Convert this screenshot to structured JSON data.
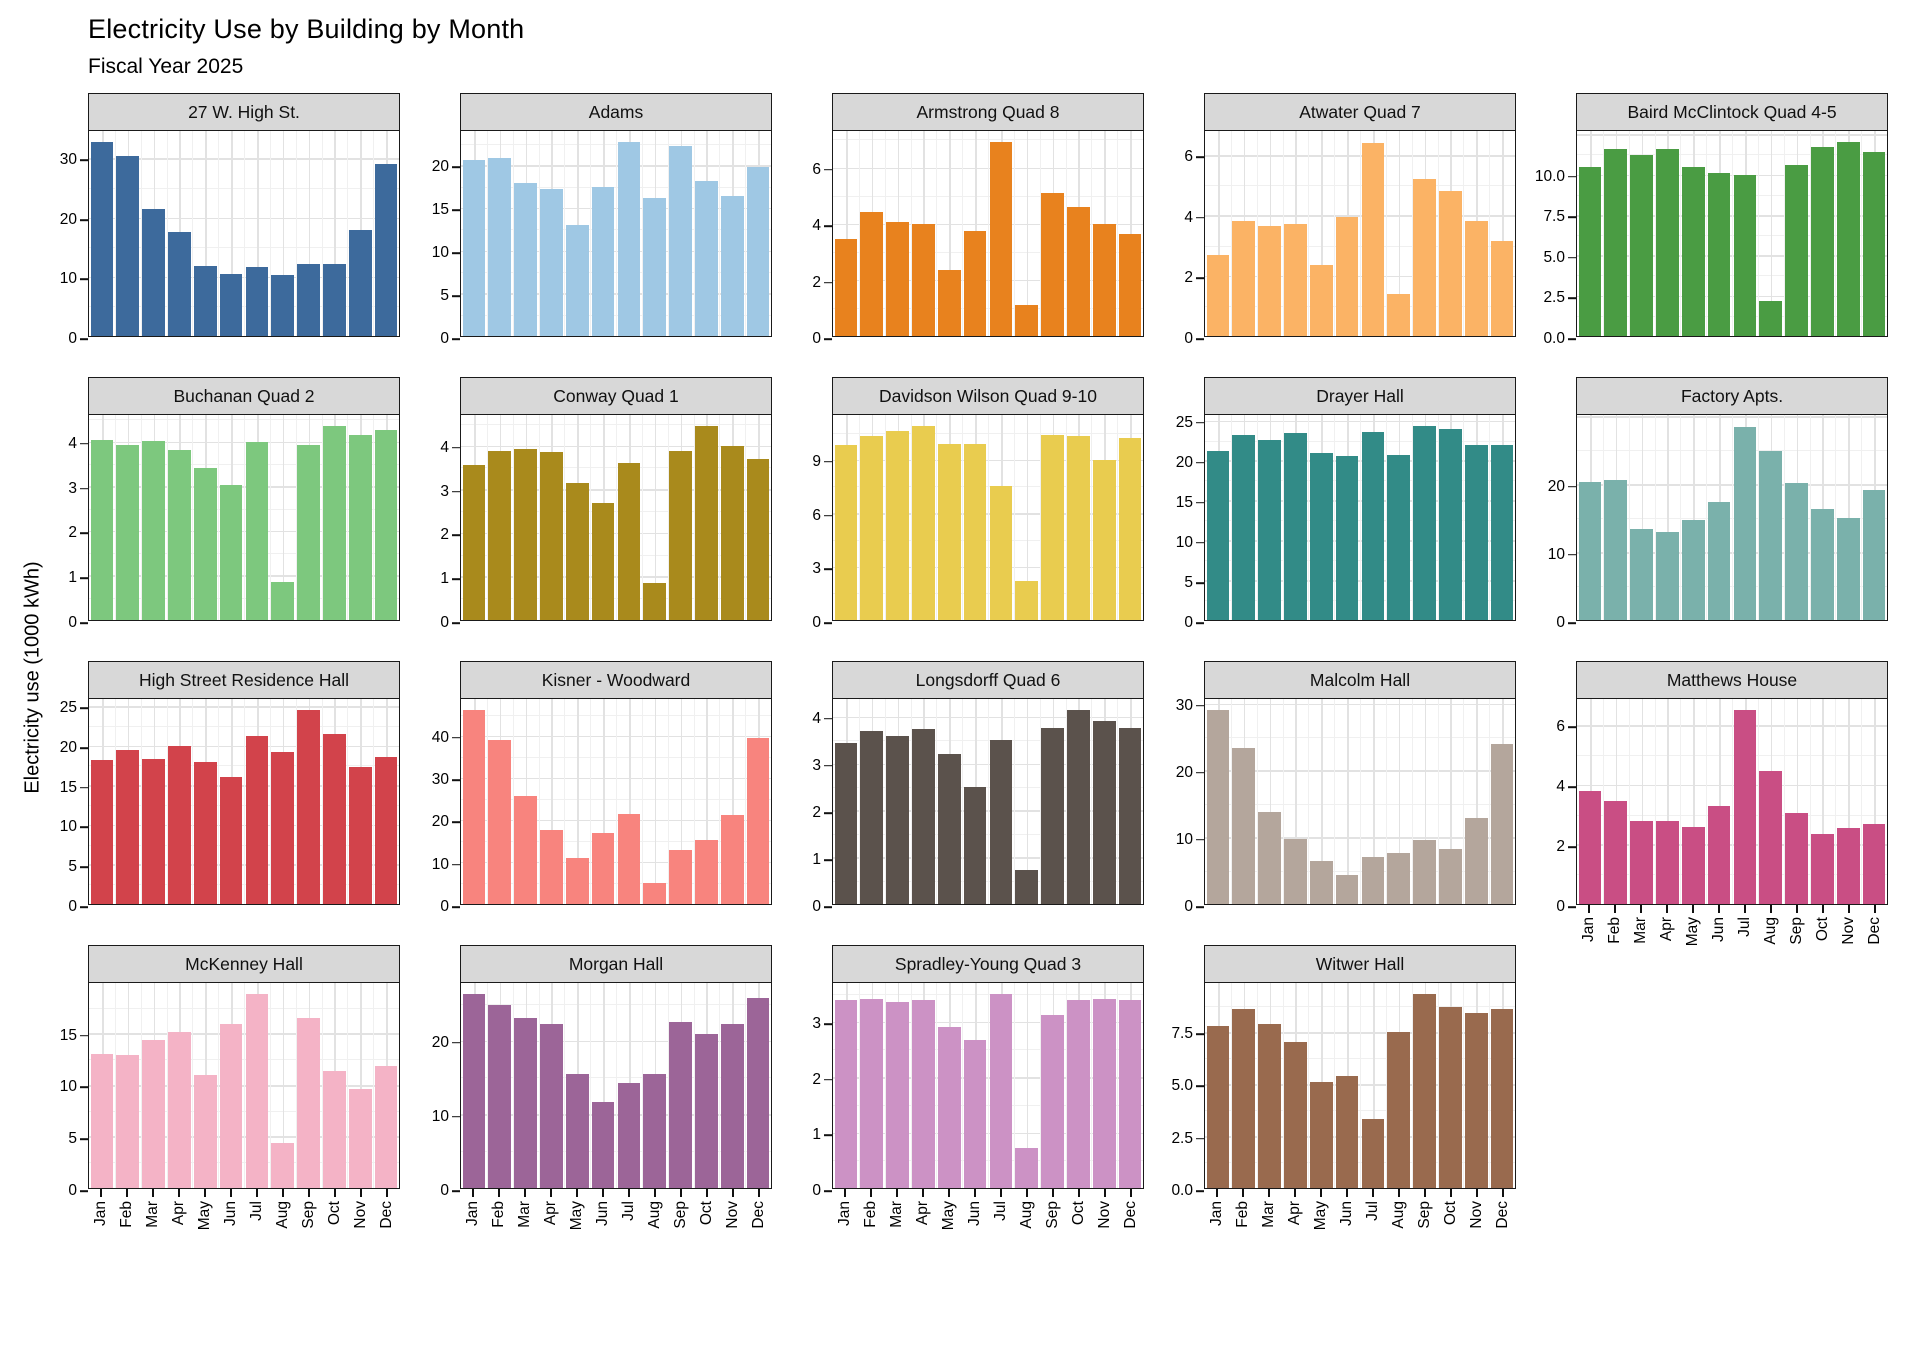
{
  "title": "Electricity Use by Building by Month",
  "subtitle": "Fiscal Year 2025",
  "chart_data": {
    "type": "bar",
    "faceted_by": "building",
    "ylabel": "Electricity use (1000 kWh)",
    "grid": true,
    "legend_position": "none",
    "categories": [
      "Jan",
      "Feb",
      "Mar",
      "Apr",
      "May",
      "Jun",
      "Jul",
      "Aug",
      "Sep",
      "Oct",
      "Nov",
      "Dec"
    ],
    "panels": [
      {
        "name": "27 W. High St.",
        "color": "#3D6A9C",
        "ylim": [
          0,
          34.6
        ],
        "tick_labels": [
          "0",
          "10",
          "20",
          "30"
        ],
        "values": [
          32.7,
          30.4,
          21.4,
          17.6,
          11.9,
          10.4,
          11.7,
          10.3,
          12.2,
          12.2,
          17.9,
          29.1
        ],
        "x_axis": false
      },
      {
        "name": "Adams",
        "color": "#9FC8E4",
        "ylim": [
          0,
          24.0
        ],
        "tick_labels": [
          "0",
          "5",
          "10",
          "15",
          "20"
        ],
        "values": [
          20.6,
          20.8,
          17.9,
          17.2,
          13.0,
          17.4,
          22.7,
          16.2,
          22.3,
          18.2,
          16.4,
          19.8
        ],
        "x_axis": false
      },
      {
        "name": "Armstrong Quad 8",
        "color": "#E8821E",
        "ylim": [
          0,
          7.3
        ],
        "tick_labels": [
          "0",
          "2",
          "4",
          "6"
        ],
        "values": [
          3.45,
          4.4,
          4.05,
          4.0,
          2.35,
          3.75,
          6.9,
          1.1,
          5.1,
          4.6,
          4.0,
          3.65
        ],
        "x_axis": false
      },
      {
        "name": "Atwater Quad 7",
        "color": "#FBB365",
        "ylim": [
          0,
          6.8
        ],
        "tick_labels": [
          "0",
          "2",
          "4",
          "6"
        ],
        "values": [
          2.7,
          3.8,
          3.65,
          3.7,
          2.35,
          3.95,
          6.4,
          1.4,
          5.2,
          4.8,
          3.8,
          3.15
        ],
        "x_axis": false
      },
      {
        "name": "Baird McClintock Quad 4-5",
        "color": "#4A9C43",
        "ylim": [
          0,
          12.7
        ],
        "tick_labels": [
          "0.0",
          "2.5",
          "5.0",
          "7.5",
          "10.0"
        ],
        "values": [
          10.5,
          11.6,
          11.2,
          11.6,
          10.5,
          10.1,
          10.0,
          2.2,
          10.6,
          11.7,
          12.0,
          11.4
        ],
        "x_axis": false
      },
      {
        "name": "Buchanan Quad 2",
        "color": "#7DC87E",
        "ylim": [
          0,
          4.6
        ],
        "tick_labels": [
          "0",
          "1",
          "2",
          "3",
          "4"
        ],
        "values": [
          4.05,
          3.93,
          4.02,
          3.82,
          3.42,
          3.02,
          4.0,
          0.85,
          3.92,
          4.35,
          4.15,
          4.27
        ],
        "x_axis": false
      },
      {
        "name": "Conway Quad 1",
        "color": "#A98A1C",
        "ylim": [
          0,
          4.7
        ],
        "tick_labels": [
          "0",
          "1",
          "2",
          "3",
          "4"
        ],
        "values": [
          3.55,
          3.87,
          3.92,
          3.85,
          3.15,
          2.68,
          3.6,
          0.85,
          3.88,
          4.45,
          4.0,
          3.7
        ],
        "x_axis": false
      },
      {
        "name": "Davidson Wilson Quad 9-10",
        "color": "#E9CC4F",
        "ylim": [
          0,
          11.5
        ],
        "tick_labels": [
          "0",
          "3",
          "6",
          "9"
        ],
        "values": [
          9.8,
          10.3,
          10.6,
          10.9,
          9.9,
          9.9,
          7.5,
          2.2,
          10.4,
          10.3,
          9.0,
          10.2
        ],
        "x_axis": false
      },
      {
        "name": "Drayer Hall",
        "color": "#328B87",
        "ylim": [
          0,
          25.7
        ],
        "tick_labels": [
          "0",
          "5",
          "10",
          "15",
          "20",
          "25"
        ],
        "values": [
          21.2,
          23.2,
          22.6,
          23.4,
          21.0,
          20.6,
          23.6,
          20.7,
          24.3,
          23.9,
          21.9,
          21.9
        ],
        "x_axis": false
      },
      {
        "name": "Factory Apts.",
        "color": "#7AB1AB",
        "ylim": [
          0,
          30.2
        ],
        "tick_labels": [
          "0",
          "10",
          "20"
        ],
        "values": [
          20.3,
          20.7,
          13.4,
          12.9,
          14.8,
          17.4,
          28.5,
          24.9,
          20.2,
          16.3,
          15.0,
          19.1
        ],
        "x_axis": false
      },
      {
        "name": "High Street Residence Hall",
        "color": "#D2434B",
        "ylim": [
          0,
          25.9
        ],
        "tick_labels": [
          "0",
          "5",
          "10",
          "15",
          "20",
          "25"
        ],
        "values": [
          18.2,
          19.4,
          18.3,
          20.0,
          17.9,
          16.1,
          21.2,
          19.2,
          24.5,
          21.5,
          17.3,
          18.6
        ],
        "x_axis": false
      },
      {
        "name": "Kisner - Woodward",
        "color": "#F8847E",
        "ylim": [
          0,
          48.7
        ],
        "tick_labels": [
          "0",
          "10",
          "20",
          "30",
          "40"
        ],
        "values": [
          46.0,
          39.0,
          25.6,
          17.6,
          11.0,
          16.8,
          21.5,
          5.1,
          12.8,
          15.1,
          21.1,
          39.4
        ],
        "x_axis": false
      },
      {
        "name": "Longsdorff Quad 6",
        "color": "#5B524C",
        "ylim": [
          0,
          4.38
        ],
        "tick_labels": [
          "0",
          "1",
          "2",
          "3",
          "4"
        ],
        "values": [
          3.45,
          3.7,
          3.6,
          3.75,
          3.2,
          2.5,
          3.5,
          0.73,
          3.76,
          4.14,
          3.9,
          3.76
        ],
        "x_axis": false
      },
      {
        "name": "Malcolm Hall",
        "color": "#B4A69C",
        "ylim": [
          0,
          30.7
        ],
        "tick_labels": [
          "0",
          "10",
          "20",
          "30"
        ],
        "values": [
          29.0,
          23.3,
          13.8,
          9.8,
          6.4,
          4.3,
          7.0,
          7.6,
          9.6,
          8.2,
          12.9,
          23.9
        ],
        "x_axis": false
      },
      {
        "name": "Matthews House",
        "color": "#C94E84",
        "ylim": [
          0,
          6.88
        ],
        "tick_labels": [
          "0",
          "2",
          "4",
          "6"
        ],
        "values": [
          3.8,
          3.45,
          2.8,
          2.8,
          2.6,
          3.3,
          6.5,
          4.45,
          3.05,
          2.35,
          2.55,
          2.7
        ],
        "x_axis": true,
        "x_axis_overflow": true
      },
      {
        "name": "McKenney Hall",
        "color": "#F4B3C6",
        "ylim": [
          0,
          19.9
        ],
        "tick_labels": [
          "0",
          "5",
          "10",
          "15"
        ],
        "values": [
          13.0,
          12.9,
          14.4,
          15.1,
          11.0,
          15.9,
          18.8,
          4.4,
          16.5,
          11.4,
          9.6,
          11.8
        ],
        "x_axis": true,
        "x_axis_overflow": false
      },
      {
        "name": "Morgan Hall",
        "color": "#9C6598",
        "ylim": [
          0,
          27.8
        ],
        "tick_labels": [
          "0",
          "10",
          "20"
        ],
        "values": [
          26.3,
          24.8,
          23.1,
          22.3,
          15.5,
          11.6,
          14.3,
          15.5,
          22.5,
          20.9,
          22.3,
          25.8
        ],
        "x_axis": true,
        "x_axis_overflow": false
      },
      {
        "name": "Spradley-Young  Quad 3",
        "color": "#CC92C5",
        "ylim": [
          0,
          3.7
        ],
        "tick_labels": [
          "0",
          "1",
          "2",
          "3"
        ],
        "values": [
          3.4,
          3.42,
          3.35,
          3.4,
          2.9,
          2.67,
          3.5,
          0.72,
          3.12,
          3.4,
          3.42,
          3.4
        ],
        "x_axis": true,
        "x_axis_overflow": false
      },
      {
        "name": "Witwer Hall",
        "color": "#996A4E",
        "ylim": [
          0,
          9.85
        ],
        "tick_labels": [
          "0.0",
          "2.5",
          "5.0",
          "7.5"
        ],
        "values": [
          7.8,
          8.6,
          7.9,
          7.0,
          5.1,
          5.4,
          3.3,
          7.5,
          9.3,
          8.7,
          8.4,
          8.6
        ],
        "x_axis": true,
        "x_axis_overflow": false
      }
    ]
  }
}
